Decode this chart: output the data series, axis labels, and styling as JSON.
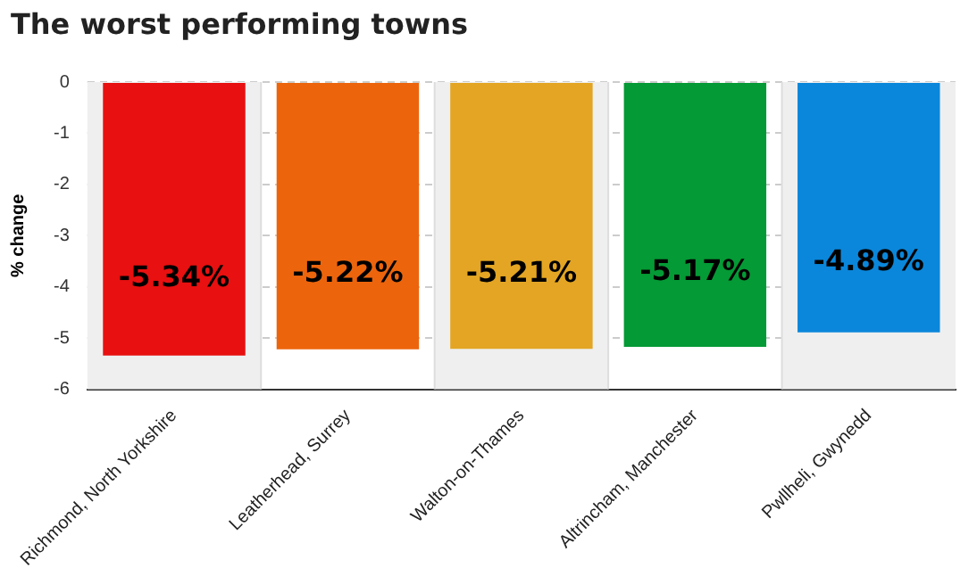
{
  "chart_data": {
    "type": "bar",
    "title": "The worst performing towns",
    "ylabel": "% change",
    "categories": [
      "Richmond, North Yorkshire",
      "Leatherhead, Surrey",
      "Walton-on-Thames",
      "Altrincham, Manchester",
      "Pwllheli, Gwynedd"
    ],
    "values": [
      -5.34,
      -5.22,
      -5.21,
      -5.17,
      -4.89
    ],
    "colors": [
      "#e81010",
      "#ec650c",
      "#e3a523",
      "#049a35",
      "#0a87db"
    ],
    "value_labels": [
      "-5.34%",
      "-5.22%",
      "-5.21%",
      "-5.17%",
      "-4.89%"
    ],
    "ylim": [
      -6,
      0
    ],
    "yticks": [
      0,
      -1,
      -2,
      -3,
      -4,
      -5,
      -6
    ],
    "grid": "y",
    "legend": false
  }
}
